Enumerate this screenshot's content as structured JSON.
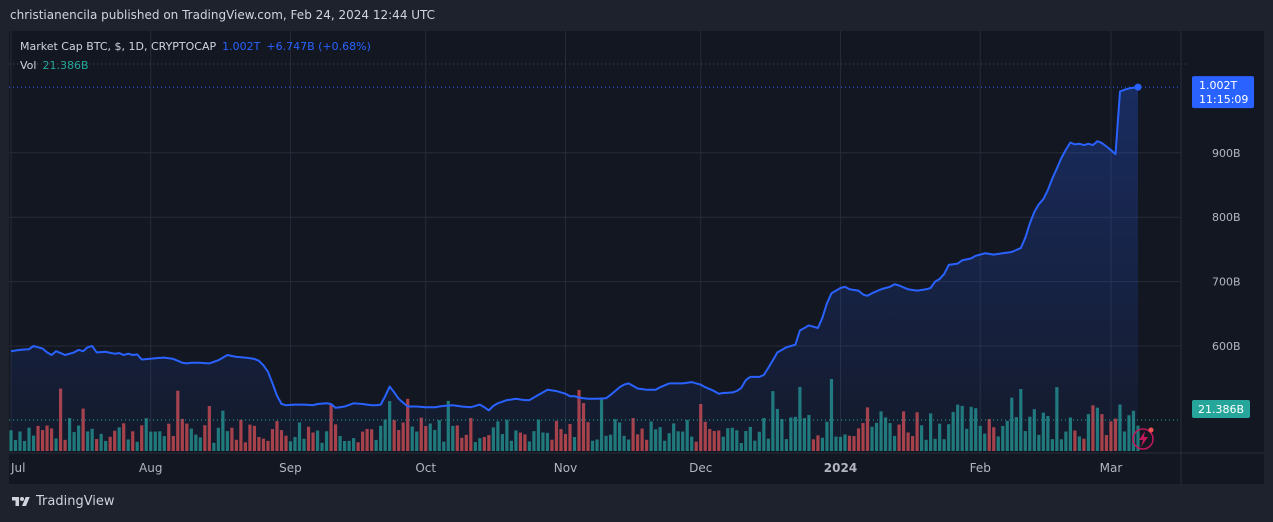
{
  "header": {
    "published_text": "christianencila published on TradingView.com, Feb 24, 2024 12:44 UTC"
  },
  "legend": {
    "symbol": "Market Cap BTC, $, 1D, CRYPTOCAP",
    "last_value": "1.002T",
    "change": "+6.747B (+0.68%)",
    "vol_label": "Vol",
    "vol_value": "21.386B"
  },
  "price_label": {
    "value": "1.002T",
    "countdown": "11:15:09"
  },
  "volume_label": "21.386B",
  "footer": {
    "brand": "TradingView"
  },
  "colors": {
    "line": "#2962ff",
    "up_volume": "#26a69a",
    "down_volume": "#ef5350",
    "background": "#131722"
  },
  "chart_data": {
    "type": "area",
    "y_axis_ticks": [
      "600B",
      "700B",
      "800B",
      "900B"
    ],
    "y_axis_values": [
      600,
      700,
      800,
      900
    ],
    "y_unit": "B USD",
    "ylim": [
      490,
      1040
    ],
    "x_axis_ticks": [
      {
        "label": "Jul",
        "day": 1,
        "bold": false
      },
      {
        "label": "Aug",
        "day": 32,
        "bold": false
      },
      {
        "label": "Sep",
        "day": 63,
        "bold": false
      },
      {
        "label": "Oct",
        "day": 93,
        "bold": false
      },
      {
        "label": "Nov",
        "day": 124,
        "bold": false
      },
      {
        "label": "Dec",
        "day": 154,
        "bold": false
      },
      {
        "label": "2024",
        "day": 185,
        "bold": true
      },
      {
        "label": "Feb",
        "day": 216,
        "bold": false
      },
      {
        "label": "Mar",
        "day": 245,
        "bold": false
      }
    ],
    "xlim": [
      1,
      251
    ],
    "start_date": "2023-07-01",
    "end_date": "2024-02-24",
    "last_value": 1002,
    "series": [
      {
        "name": "Market Cap BTC",
        "points": [
          [
            1,
            592
          ],
          [
            3,
            594
          ],
          [
            5,
            595
          ],
          [
            6,
            600
          ],
          [
            8,
            596
          ],
          [
            9,
            590
          ],
          [
            10,
            586
          ],
          [
            11,
            592
          ],
          [
            13,
            586
          ],
          [
            15,
            590
          ],
          [
            16,
            594
          ],
          [
            17,
            592
          ],
          [
            18,
            598
          ],
          [
            19,
            600
          ],
          [
            20,
            590
          ],
          [
            22,
            591
          ],
          [
            24,
            588
          ],
          [
            25,
            589
          ],
          [
            26,
            586
          ],
          [
            27,
            588
          ],
          [
            28,
            586
          ],
          [
            29,
            587
          ],
          [
            30,
            579
          ],
          [
            33,
            581
          ],
          [
            35,
            582
          ],
          [
            37,
            580
          ],
          [
            39,
            574
          ],
          [
            40,
            573
          ],
          [
            41,
            574
          ],
          [
            43,
            574
          ],
          [
            45,
            573
          ],
          [
            47,
            578
          ],
          [
            49,
            586
          ],
          [
            51,
            583
          ],
          [
            53,
            582
          ],
          [
            55,
            580
          ],
          [
            56,
            577
          ],
          [
            57,
            570
          ],
          [
            58,
            560
          ],
          [
            59,
            542
          ],
          [
            60,
            523
          ],
          [
            61,
            510
          ],
          [
            62,
            508
          ],
          [
            64,
            509
          ],
          [
            66,
            509
          ],
          [
            68,
            508
          ],
          [
            69,
            510
          ],
          [
            71,
            511
          ],
          [
            72,
            510
          ],
          [
            73,
            504
          ],
          [
            75,
            506
          ],
          [
            77,
            511
          ],
          [
            79,
            510
          ],
          [
            81,
            508
          ],
          [
            82,
            508
          ],
          [
            83,
            509
          ],
          [
            84,
            522
          ],
          [
            85,
            537
          ],
          [
            86,
            528
          ],
          [
            87,
            518
          ],
          [
            88,
            512
          ],
          [
            89,
            506
          ],
          [
            91,
            506
          ],
          [
            93,
            505
          ],
          [
            95,
            505
          ],
          [
            97,
            507
          ],
          [
            99,
            508
          ],
          [
            101,
            506
          ],
          [
            103,
            505
          ],
          [
            105,
            509
          ],
          [
            106,
            505
          ],
          [
            107,
            500
          ],
          [
            108,
            507
          ],
          [
            109,
            511
          ],
          [
            111,
            516
          ],
          [
            113,
            518
          ],
          [
            115,
            516
          ],
          [
            116,
            516
          ],
          [
            117,
            520
          ],
          [
            118,
            524
          ],
          [
            119,
            528
          ],
          [
            120,
            532
          ],
          [
            122,
            530
          ],
          [
            124,
            526
          ],
          [
            125,
            522
          ],
          [
            126,
            522
          ],
          [
            127,
            520
          ],
          [
            129,
            518
          ],
          [
            131,
            518
          ],
          [
            133,
            519
          ],
          [
            134,
            524
          ],
          [
            135,
            530
          ],
          [
            136,
            536
          ],
          [
            137,
            540
          ],
          [
            138,
            542
          ],
          [
            139,
            538
          ],
          [
            140,
            534
          ],
          [
            142,
            532
          ],
          [
            144,
            532
          ],
          [
            145,
            536
          ],
          [
            147,
            542
          ],
          [
            149,
            542
          ],
          [
            150,
            542
          ],
          [
            152,
            544
          ],
          [
            154,
            540
          ],
          [
            155,
            536
          ],
          [
            157,
            530
          ],
          [
            158,
            526
          ],
          [
            159,
            527
          ],
          [
            161,
            528
          ],
          [
            162,
            530
          ],
          [
            163,
            535
          ],
          [
            164,
            547
          ],
          [
            165,
            552
          ],
          [
            167,
            552
          ],
          [
            168,
            555
          ],
          [
            169,
            566
          ],
          [
            170,
            578
          ],
          [
            171,
            590
          ],
          [
            172,
            594
          ],
          [
            173,
            598
          ],
          [
            175,
            602
          ],
          [
            176,
            624
          ],
          [
            178,
            632
          ],
          [
            180,
            628
          ],
          [
            181,
            644
          ],
          [
            182,
            666
          ],
          [
            183,
            682
          ],
          [
            185,
            690
          ],
          [
            186,
            692
          ],
          [
            187,
            688
          ],
          [
            189,
            686
          ],
          [
            190,
            680
          ],
          [
            191,
            678
          ],
          [
            192,
            682
          ],
          [
            194,
            688
          ],
          [
            195,
            690
          ],
          [
            196,
            692
          ],
          [
            197,
            696
          ],
          [
            198,
            694
          ],
          [
            200,
            688
          ],
          [
            202,
            686
          ],
          [
            204,
            688
          ],
          [
            205,
            690
          ],
          [
            206,
            700
          ],
          [
            207,
            704
          ],
          [
            208,
            712
          ],
          [
            209,
            726
          ],
          [
            211,
            728
          ],
          [
            212,
            733
          ],
          [
            214,
            736
          ],
          [
            215,
            740
          ],
          [
            217,
            744
          ],
          [
            219,
            742
          ],
          [
            221,
            744
          ],
          [
            223,
            746
          ],
          [
            225,
            752
          ],
          [
            226,
            768
          ],
          [
            227,
            790
          ],
          [
            228,
            808
          ],
          [
            229,
            820
          ],
          [
            230,
            828
          ],
          [
            231,
            842
          ],
          [
            232,
            860
          ],
          [
            233,
            876
          ],
          [
            234,
            892
          ],
          [
            235,
            905
          ],
          [
            236,
            916
          ],
          [
            237,
            913
          ],
          [
            238,
            914
          ],
          [
            239,
            912
          ],
          [
            240,
            914
          ],
          [
            241,
            912
          ],
          [
            242,
            918
          ],
          [
            243,
            915
          ],
          [
            244,
            910
          ],
          [
            245,
            904
          ],
          [
            246,
            898
          ],
          [
            247,
            995
          ],
          [
            248,
            998
          ],
          [
            249,
            1000
          ],
          [
            250,
            1001
          ],
          [
            251,
            1002
          ]
        ]
      }
    ],
    "volume": {
      "name": "Vol",
      "unit": "B USD",
      "last_value": 21.386
    }
  }
}
